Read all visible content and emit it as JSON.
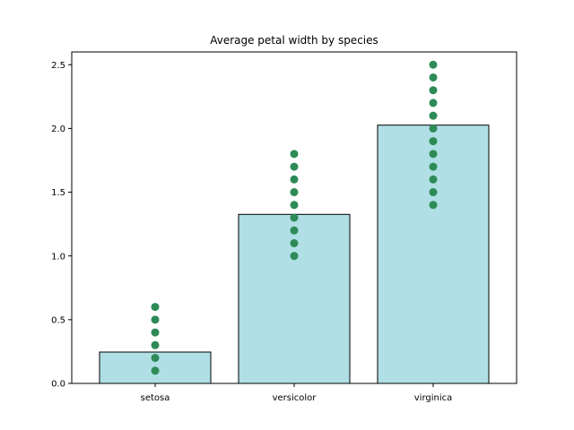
{
  "chart_data": {
    "type": "bar",
    "title": "Average petal width by species",
    "xlabel": "",
    "ylabel": "",
    "categories": [
      "setosa",
      "versicolor",
      "virginica"
    ],
    "values": [
      0.246,
      1.326,
      2.026
    ],
    "ylim": [
      0,
      2.6
    ],
    "yticks": [
      0.0,
      0.5,
      1.0,
      1.5,
      2.0,
      2.5
    ],
    "ytick_labels": [
      "0.0",
      "0.5",
      "1.0",
      "1.5",
      "2.0",
      "2.5"
    ],
    "grid": false,
    "points": [
      [
        0.1,
        0.2,
        0.3,
        0.4,
        0.5,
        0.6
      ],
      [
        1.0,
        1.1,
        1.2,
        1.3,
        1.4,
        1.5,
        1.6,
        1.7,
        1.8
      ],
      [
        1.4,
        1.5,
        1.6,
        1.7,
        1.8,
        1.9,
        2.0,
        2.1,
        2.2,
        2.3,
        2.4,
        2.5
      ]
    ],
    "colors": {
      "bar_fill": "#b0dfe5",
      "bar_edge": "#000000",
      "points": "#2e8b57",
      "axes": "#000000"
    }
  }
}
